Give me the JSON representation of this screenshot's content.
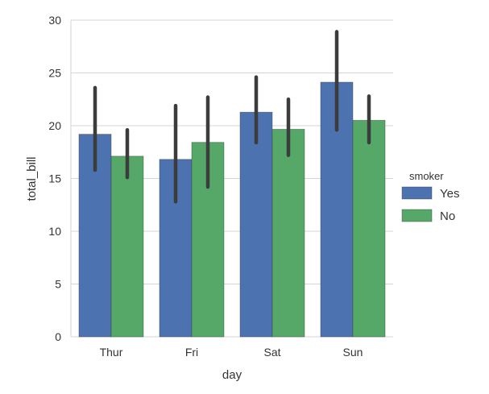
{
  "chart_data": {
    "type": "bar",
    "title": "",
    "xlabel": "day",
    "ylabel": "total_bill",
    "categories": [
      "Thur",
      "Fri",
      "Sat",
      "Sun"
    ],
    "ylim": [
      0,
      30
    ],
    "yticks": [
      "0",
      "5",
      "10",
      "15",
      "20",
      "25",
      "30"
    ],
    "grid": true,
    "legend": {
      "title": "smoker",
      "placement": "right"
    },
    "series": [
      {
        "name": "Yes",
        "color": "#4c72b0",
        "values": [
          19.19,
          16.81,
          21.28,
          24.12
        ],
        "ci_low": [
          15.8,
          12.8,
          18.4,
          19.6
        ],
        "ci_high": [
          23.6,
          21.9,
          24.6,
          28.9
        ]
      },
      {
        "name": "No",
        "color": "#55a868",
        "values": [
          17.11,
          18.42,
          19.66,
          20.51
        ],
        "ci_low": [
          15.1,
          14.2,
          17.2,
          18.4
        ],
        "ci_high": [
          19.6,
          22.7,
          22.5,
          22.8
        ]
      }
    ]
  }
}
